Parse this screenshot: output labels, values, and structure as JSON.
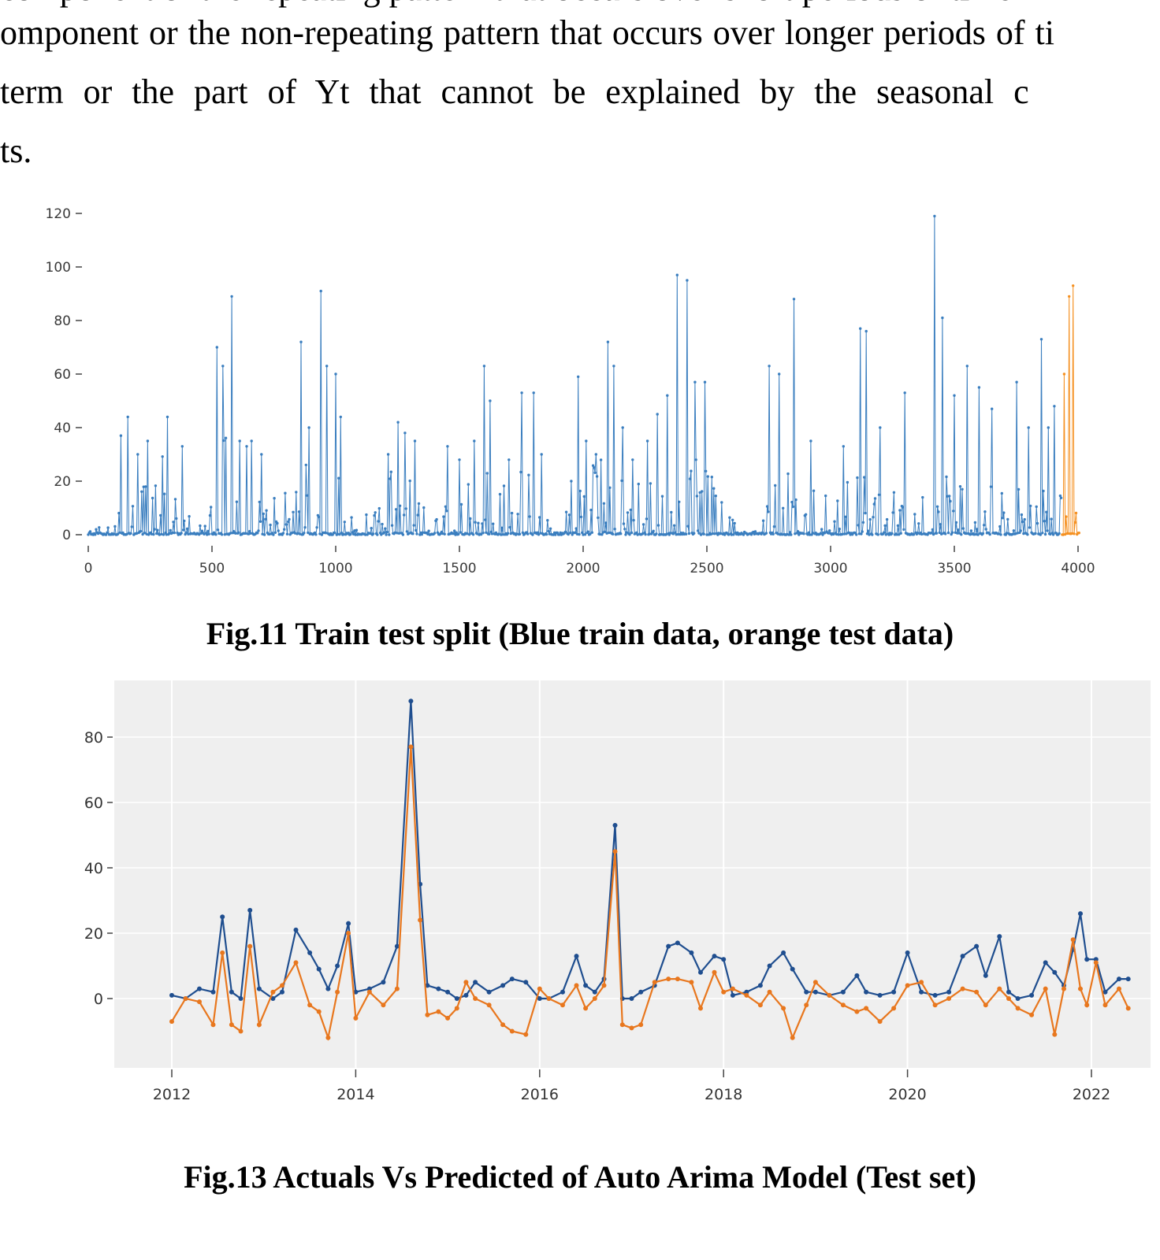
{
  "document": {
    "clipped_line_fragment": "component or the repeating pattern that occurs over short periods of time",
    "lines": [
      "omponent or the non-repeating pattern that occurs over longer periods of ti",
      "term or the part of Yt that cannot be explained by the seasonal c",
      "ts."
    ]
  },
  "figures": [
    {
      "caption": "Fig.11 Train test split (Blue train data, orange test data)"
    },
    {
      "caption": "Fig.13 Actuals Vs Predicted of Auto Arima Model (Test set)"
    }
  ],
  "chart_data": [
    {
      "type": "line",
      "title": "Train test split",
      "xlabel": "",
      "ylabel": "",
      "x_ticks": [
        0,
        500,
        1000,
        1500,
        2000,
        2500,
        3000,
        3500,
        4000
      ],
      "y_ticks": [
        0,
        20,
        40,
        60,
        80,
        100,
        120
      ],
      "xlim": [
        -60,
        4060
      ],
      "ylim": [
        0,
        125
      ],
      "grid": false,
      "train_color": "#3a7ebf",
      "test_color": "#f59122",
      "split_x": 3935,
      "x_data_range": [
        0,
        4004
      ],
      "gen": {
        "seed": 42,
        "step": 4,
        "power": 3.2
      },
      "envelope": [
        [
          0,
          3
        ],
        [
          90,
          10
        ],
        [
          130,
          30
        ],
        [
          170,
          32
        ],
        [
          220,
          26
        ],
        [
          300,
          30
        ],
        [
          350,
          14
        ],
        [
          420,
          7
        ],
        [
          470,
          8
        ],
        [
          510,
          26
        ],
        [
          560,
          40
        ],
        [
          600,
          26
        ],
        [
          650,
          26
        ],
        [
          700,
          22
        ],
        [
          760,
          14
        ],
        [
          820,
          18
        ],
        [
          870,
          34
        ],
        [
          950,
          42
        ],
        [
          1010,
          32
        ],
        [
          1060,
          8
        ],
        [
          1150,
          9
        ],
        [
          1220,
          26
        ],
        [
          1300,
          26
        ],
        [
          1380,
          20
        ],
        [
          1460,
          20
        ],
        [
          1540,
          20
        ],
        [
          1610,
          32
        ],
        [
          1700,
          22
        ],
        [
          1790,
          26
        ],
        [
          1860,
          10
        ],
        [
          1940,
          14
        ],
        [
          2010,
          28
        ],
        [
          2110,
          30
        ],
        [
          2200,
          18
        ],
        [
          2300,
          24
        ],
        [
          2400,
          40
        ],
        [
          2500,
          26
        ],
        [
          2600,
          12
        ],
        [
          2700,
          20
        ],
        [
          2800,
          30
        ],
        [
          2900,
          18
        ],
        [
          3000,
          14
        ],
        [
          3100,
          28
        ],
        [
          3200,
          20
        ],
        [
          3300,
          14
        ],
        [
          3420,
          26
        ],
        [
          3500,
          24
        ],
        [
          3600,
          24
        ],
        [
          3700,
          16
        ],
        [
          3800,
          24
        ],
        [
          3900,
          20
        ],
        [
          3960,
          16
        ],
        [
          4004,
          6
        ]
      ],
      "peaks": [
        [
          130,
          37
        ],
        [
          160,
          44
        ],
        [
          200,
          30
        ],
        [
          240,
          35
        ],
        [
          320,
          44
        ],
        [
          380,
          33
        ],
        [
          520,
          70
        ],
        [
          545,
          63
        ],
        [
          580,
          89
        ],
        [
          610,
          35
        ],
        [
          640,
          33
        ],
        [
          660,
          35
        ],
        [
          700,
          30
        ],
        [
          860,
          72
        ],
        [
          890,
          40
        ],
        [
          940,
          91
        ],
        [
          965,
          63
        ],
        [
          1000,
          60
        ],
        [
          1020,
          44
        ],
        [
          1210,
          30
        ],
        [
          1250,
          42
        ],
        [
          1280,
          38
        ],
        [
          1320,
          35
        ],
        [
          1450,
          33
        ],
        [
          1500,
          28
        ],
        [
          1560,
          35
        ],
        [
          1600,
          63
        ],
        [
          1625,
          50
        ],
        [
          1700,
          28
        ],
        [
          1750,
          53
        ],
        [
          1800,
          53
        ],
        [
          1830,
          30
        ],
        [
          1950,
          20
        ],
        [
          1980,
          59
        ],
        [
          2010,
          35
        ],
        [
          2050,
          30
        ],
        [
          2100,
          72
        ],
        [
          2125,
          63
        ],
        [
          2160,
          40
        ],
        [
          2200,
          28
        ],
        [
          2260,
          35
        ],
        [
          2300,
          45
        ],
        [
          2340,
          52
        ],
        [
          2380,
          97
        ],
        [
          2420,
          95
        ],
        [
          2450,
          57
        ],
        [
          2490,
          57
        ],
        [
          2750,
          63
        ],
        [
          2790,
          60
        ],
        [
          2850,
          88
        ],
        [
          2920,
          35
        ],
        [
          3050,
          33
        ],
        [
          3120,
          77
        ],
        [
          3145,
          76
        ],
        [
          3200,
          40
        ],
        [
          3300,
          53
        ],
        [
          3420,
          119
        ],
        [
          3450,
          81
        ],
        [
          3500,
          52
        ],
        [
          3550,
          63
        ],
        [
          3600,
          55
        ],
        [
          3650,
          47
        ],
        [
          3750,
          57
        ],
        [
          3800,
          40
        ],
        [
          3850,
          73
        ],
        [
          3880,
          40
        ],
        [
          3905,
          48
        ]
      ],
      "test_peaks": [
        [
          3945,
          60
        ],
        [
          3962,
          89
        ],
        [
          3978,
          93
        ]
      ]
    },
    {
      "type": "line",
      "title": "Actuals Vs Predicted of Auto Arima Model (Test set)",
      "xlabel": "",
      "ylabel": "",
      "x_ticks": [
        2012,
        2014,
        2016,
        2018,
        2020,
        2022
      ],
      "y_ticks": [
        0,
        20,
        40,
        60,
        80
      ],
      "xlim": [
        2011.37,
        2022.64
      ],
      "ylim": [
        -21,
        97
      ],
      "grid": true,
      "panel_bg": "#efefef",
      "grid_color": "#ffffff",
      "x": [
        2012.0,
        2012.15,
        2012.3,
        2012.45,
        2012.55,
        2012.65,
        2012.75,
        2012.85,
        2012.95,
        2013.1,
        2013.2,
        2013.35,
        2013.5,
        2013.6,
        2013.7,
        2013.8,
        2013.92,
        2014.0,
        2014.15,
        2014.3,
        2014.45,
        2014.6,
        2014.7,
        2014.78,
        2014.9,
        2015.0,
        2015.1,
        2015.2,
        2015.3,
        2015.45,
        2015.6,
        2015.7,
        2015.85,
        2016.0,
        2016.1,
        2016.25,
        2016.4,
        2016.5,
        2016.6,
        2016.7,
        2016.82,
        2016.9,
        2017.0,
        2017.1,
        2017.25,
        2017.4,
        2017.5,
        2017.65,
        2017.75,
        2017.9,
        2018.0,
        2018.1,
        2018.25,
        2018.4,
        2018.5,
        2018.65,
        2018.75,
        2018.9,
        2019.0,
        2019.15,
        2019.3,
        2019.45,
        2019.55,
        2019.7,
        2019.85,
        2020.0,
        2020.15,
        2020.3,
        2020.45,
        2020.6,
        2020.75,
        2020.85,
        2021.0,
        2021.1,
        2021.2,
        2021.35,
        2021.5,
        2021.6,
        2021.7,
        2021.8,
        2021.88,
        2021.95,
        2022.05,
        2022.15,
        2022.3,
        2022.4
      ],
      "series": [
        {
          "name": "Actuals",
          "color": "#1f4e8f",
          "values": [
            1,
            0,
            3,
            2,
            25,
            2,
            0,
            27,
            3,
            0,
            2,
            21,
            14,
            9,
            3,
            10,
            23,
            2,
            3,
            5,
            16,
            91,
            35,
            4,
            3,
            2,
            0,
            1,
            5,
            2,
            4,
            6,
            5,
            0,
            0,
            2,
            13,
            4,
            2,
            6,
            53,
            0,
            0,
            2,
            4,
            16,
            17,
            14,
            8,
            13,
            12,
            1,
            2,
            4,
            10,
            14,
            9,
            2,
            2,
            1,
            2,
            7,
            2,
            1,
            2,
            14,
            2,
            1,
            2,
            13,
            16,
            7,
            19,
            2,
            0,
            1,
            11,
            8,
            4,
            15,
            26,
            12,
            12,
            2,
            6,
            6
          ]
        },
        {
          "name": "Predicted",
          "color": "#e8771e",
          "values": [
            -7,
            0,
            -1,
            -8,
            14,
            -8,
            -10,
            16,
            -8,
            2,
            4,
            11,
            -2,
            -4,
            -12,
            2,
            20,
            -6,
            2,
            -2,
            3,
            77,
            24,
            -5,
            -4,
            -6,
            -3,
            5,
            0,
            -2,
            -8,
            -10,
            -11,
            3,
            0,
            -2,
            4,
            -3,
            0,
            4,
            45,
            -8,
            -9,
            -8,
            5,
            6,
            6,
            5,
            -3,
            8,
            2,
            3,
            1,
            -2,
            2,
            -3,
            -12,
            -2,
            5,
            1,
            -2,
            -4,
            -3,
            -7,
            -3,
            4,
            5,
            -2,
            0,
            3,
            2,
            -2,
            3,
            0,
            -3,
            -5,
            3,
            -11,
            3,
            18,
            3,
            -2,
            11,
            -2,
            3,
            -3
          ]
        }
      ]
    }
  ]
}
